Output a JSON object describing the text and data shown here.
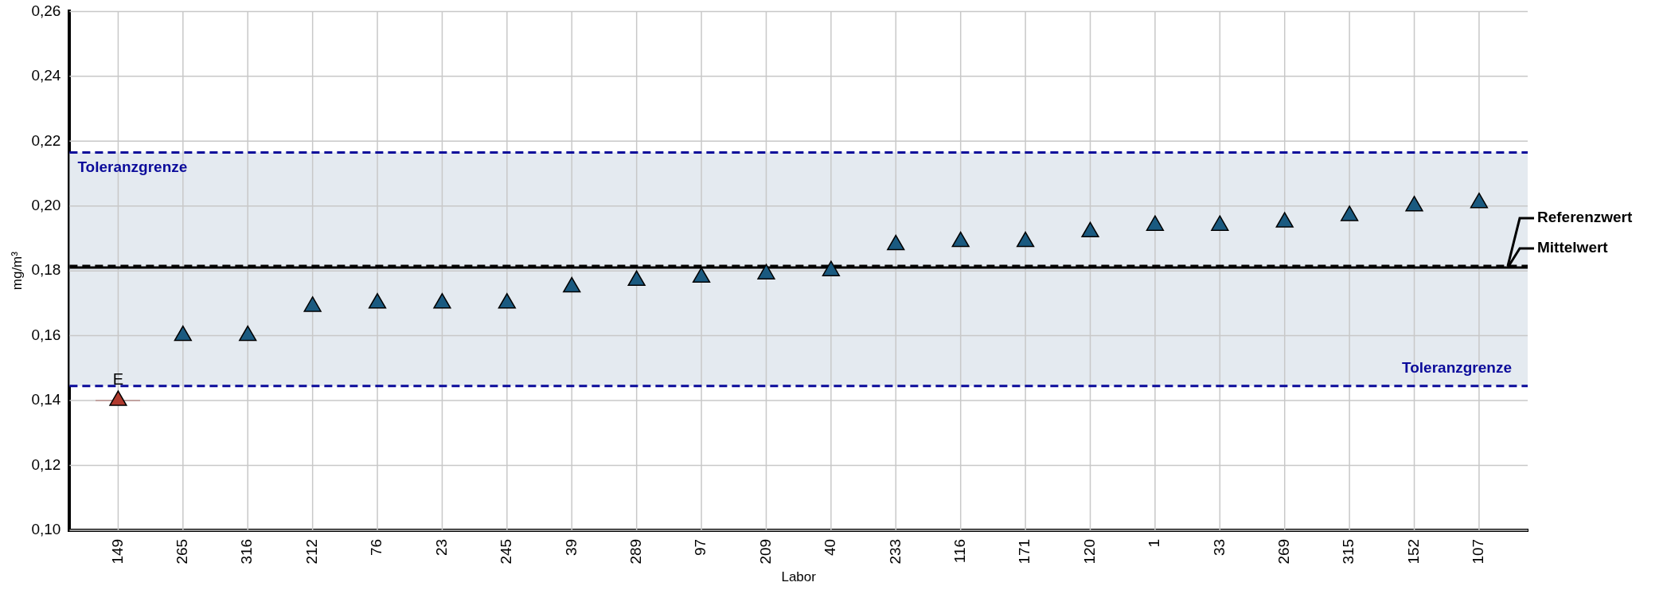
{
  "chart_data": {
    "type": "scatter",
    "xlabel": "Labor",
    "ylabel": "mg/m³",
    "categories": [
      "149",
      "265",
      "316",
      "212",
      "76",
      "23",
      "245",
      "39",
      "289",
      "97",
      "209",
      "40",
      "233",
      "116",
      "171",
      "120",
      "1",
      "33",
      "269",
      "315",
      "152",
      "107"
    ],
    "series": [
      {
        "colors": [
          "#b03a2e",
          "#1a5a80",
          "#1a5a80",
          "#1a5a80",
          "#1a5a80",
          "#1a5a80",
          "#1a5a80",
          "#1a5a80",
          "#1a5a80",
          "#1a5a80",
          "#1a5a80",
          "#1a5a80",
          "#1a5a80",
          "#1a5a80",
          "#1a5a80",
          "#1a5a80",
          "#1a5a80",
          "#1a5a80",
          "#1a5a80",
          "#1a5a80",
          "#1a5a80",
          "#1a5a80"
        ],
        "values": [
          0.14,
          0.16,
          0.16,
          0.169,
          0.17,
          0.17,
          0.17,
          0.175,
          0.177,
          0.178,
          0.179,
          0.18,
          0.188,
          0.189,
          0.189,
          0.192,
          0.194,
          0.194,
          0.195,
          0.197,
          0.2,
          0.201
        ]
      }
    ],
    "ylim": [
      0.1,
      0.26
    ],
    "yticks": [
      {
        "value": 0.1,
        "label": "0,10"
      },
      {
        "value": 0.12,
        "label": "0,12"
      },
      {
        "value": 0.14,
        "label": "0,14"
      },
      {
        "value": 0.16,
        "label": "0,16"
      },
      {
        "value": 0.18,
        "label": "0,18"
      },
      {
        "value": 0.2,
        "label": "0,20"
      },
      {
        "value": 0.22,
        "label": "0,22"
      },
      {
        "value": 0.24,
        "label": "0,24"
      },
      {
        "value": 0.26,
        "label": "0,26"
      }
    ],
    "grid": true,
    "legend": "right",
    "marker": "triangle",
    "bands": [
      {
        "axis": "y",
        "from": 0.1445,
        "to": 0.2165,
        "color": "#e4eaf0"
      }
    ],
    "ref_lines": [
      {
        "axis": "y",
        "value": 0.2165,
        "label": "Toleranzgrenze",
        "color": "#0a0a9a",
        "line_style": "dashed"
      },
      {
        "axis": "y",
        "value": 0.1445,
        "label": "Toleranzgrenze",
        "color": "#0a0a9a",
        "line_style": "dashed"
      },
      {
        "axis": "y",
        "value": 0.1815,
        "label": "Referenzwert",
        "color": "#000000",
        "line_style": "dashed"
      },
      {
        "axis": "y",
        "value": 0.181,
        "label": "Mittelwert",
        "color": "#000000",
        "line_style": "solid"
      }
    ],
    "annotations": [
      {
        "text": "E",
        "x": "149",
        "y": 0.14
      }
    ]
  }
}
